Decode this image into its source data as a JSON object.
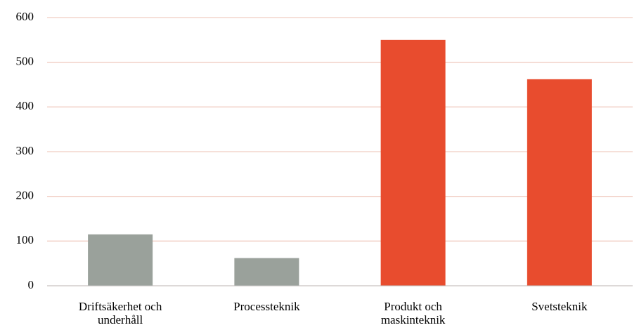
{
  "chart_data": {
    "type": "bar",
    "categories": [
      "Driftsäkerhet och underhåll",
      "Processteknik",
      "Produkt och maskinteknik",
      "Svetsteknik"
    ],
    "values": [
      115,
      62,
      550,
      462
    ],
    "colors": [
      "#9aa19b",
      "#9aa19b",
      "#e84c2e",
      "#e84c2e"
    ],
    "ylim": [
      0,
      600
    ],
    "yticks": [
      0,
      100,
      200,
      300,
      400,
      500,
      600
    ],
    "grid": true
  }
}
